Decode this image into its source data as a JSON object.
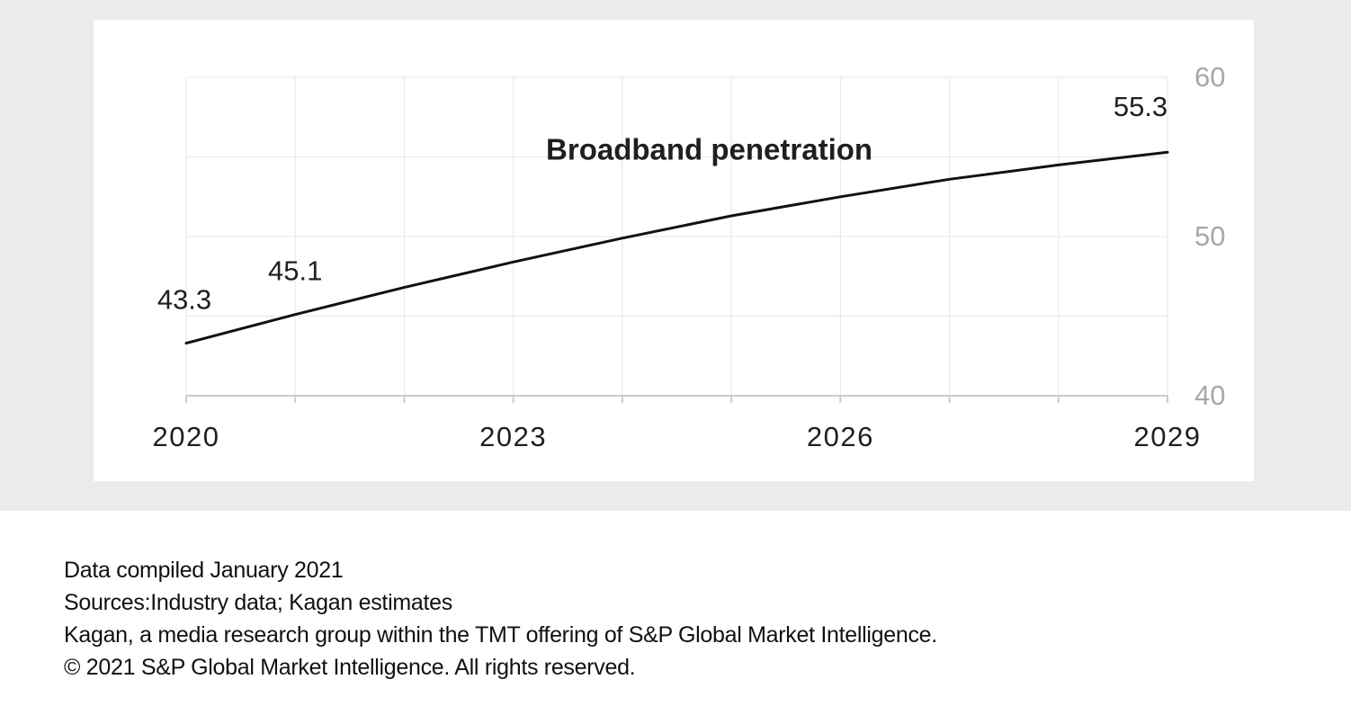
{
  "chart_data": {
    "type": "line",
    "series": [
      {
        "name": "Broadband penetration",
        "x": [
          2020,
          2021,
          2022,
          2023,
          2024,
          2025,
          2026,
          2027,
          2028,
          2029
        ],
        "values": [
          43.3,
          45.1,
          46.8,
          48.4,
          49.9,
          51.3,
          52.5,
          53.6,
          54.5,
          55.3
        ]
      }
    ],
    "data_labels": [
      {
        "x": 2020,
        "value": 43.3,
        "label": "43.3"
      },
      {
        "x": 2021,
        "value": 45.1,
        "label": "45.1"
      },
      {
        "x": 2029,
        "value": 55.3,
        "label": "55.3"
      }
    ],
    "x_tick_labels": [
      "2020",
      "2023",
      "2026",
      "2029"
    ],
    "x_ticks": [
      2020,
      2023,
      2026,
      2029
    ],
    "y_tick_labels": [
      "60",
      "50",
      "40"
    ],
    "y_ticks": [
      60,
      50,
      40
    ],
    "xlim": [
      2020,
      2029
    ],
    "ylim": [
      40,
      60
    ],
    "grid": true,
    "y_axis_side": "right",
    "title": "",
    "xlabel": "",
    "ylabel": "",
    "colors": {
      "line": "#111111",
      "grid": "#e6e6e6",
      "axis": "#cccccc",
      "tick_text": "#1f1f1f",
      "y_tick_text": "#a7a7a7"
    }
  },
  "footer": {
    "line1": "Data compiled January 2021",
    "line2": "Sources:Industry data; Kagan estimates",
    "line3": "Kagan, a media research group within the TMT offering of S&P Global Market Intelligence.",
    "line4": "© 2021 S&P Global Market Intelligence. All rights reserved."
  }
}
